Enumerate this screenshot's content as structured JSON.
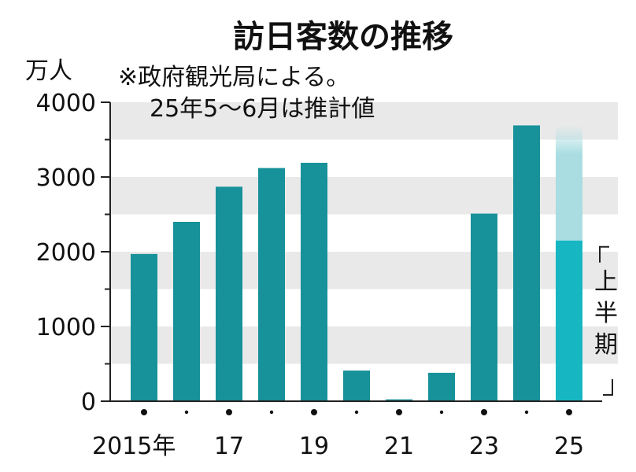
{
  "chart_data": {
    "type": "bar",
    "title": "訪日客数の推移",
    "ylabel": "万人",
    "note_lines": [
      "※政府観光局による。",
      "25年5～6月は推計値"
    ],
    "ylim": [
      0,
      4000
    ],
    "yticks": [
      0,
      1000,
      2000,
      3000,
      4000
    ],
    "categories": [
      "2015",
      "2016",
      "2017",
      "2018",
      "2019",
      "2020",
      "2021",
      "2022",
      "2023",
      "2024",
      "2025"
    ],
    "x_tick_labels": [
      "2015年",
      "",
      "17",
      "",
      "19",
      "",
      "21",
      "",
      "23",
      "",
      "25"
    ],
    "values": [
      1970,
      2400,
      2870,
      3120,
      3190,
      410,
      25,
      380,
      2510,
      3690,
      2150
    ],
    "projection": {
      "category": "2025",
      "value": 3690
    },
    "annotation": {
      "label": "上半期",
      "category": "2025"
    },
    "grid": "alternating horizontal bands",
    "colors": {
      "bar": "#17919a",
      "bar_2025": "#16b7c2",
      "projection_fill": "#a9dde2",
      "band": "#e9e9e9",
      "axis": "#222222"
    }
  }
}
